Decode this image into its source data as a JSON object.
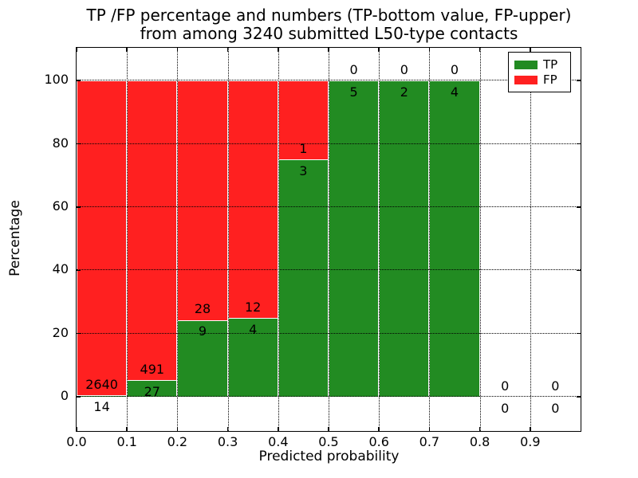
{
  "title": {
    "line1": "TP /FP percentage and numbers (TP-bottom value, FP-upper)",
    "line2": "from among 3240 submitted L50-type contacts"
  },
  "axes": {
    "xlabel": "Predicted probability",
    "ylabel": "Percentage",
    "x_tick_labels": [
      "0.0",
      "0.1",
      "0.2",
      "0.3",
      "0.4",
      "0.5",
      "0.6",
      "0.7",
      "0.8",
      "0.9"
    ],
    "y_tick_labels": [
      "0",
      "20",
      "40",
      "60",
      "80",
      "100"
    ],
    "grid_style": "dotted"
  },
  "legend": {
    "position": "upper right",
    "entries": [
      {
        "label": "TP",
        "color": "#228b22"
      },
      {
        "label": "FP",
        "color": "#ff2020"
      }
    ]
  },
  "chart_data": {
    "type": "bar",
    "stacked": true,
    "normalization": "each bin scaled to 100% (TP bottom, FP upper); labels show raw counts",
    "title": "TP /FP percentage and numbers (TP-bottom value, FP-upper) from among 3240 submitted L50-type contacts",
    "xlabel": "Predicted probability",
    "ylabel": "Percentage",
    "total_contacts": 3240,
    "bin_edges": [
      0.0,
      0.1,
      0.2,
      0.3,
      0.4,
      0.5,
      0.6,
      0.7,
      0.8,
      0.9,
      1.0
    ],
    "series": [
      {
        "name": "TP",
        "color": "#228b22",
        "counts": [
          14,
          27,
          9,
          4,
          3,
          5,
          2,
          4,
          0,
          0
        ]
      },
      {
        "name": "FP",
        "color": "#ff2020",
        "counts": [
          2640,
          491,
          28,
          12,
          1,
          0,
          0,
          0,
          0,
          0
        ]
      }
    ],
    "tp_percent_per_bin": [
      0.53,
      5.21,
      24.32,
      25.0,
      75.0,
      100.0,
      100.0,
      100.0,
      null,
      null
    ],
    "xlim": [
      0.0,
      1.0
    ],
    "ylim": [
      -10.8,
      110.1
    ],
    "x_ticks": [
      0.0,
      0.1,
      0.2,
      0.3,
      0.4,
      0.5,
      0.6,
      0.7,
      0.8,
      0.9
    ],
    "y_ticks": [
      0,
      20,
      40,
      60,
      80,
      100
    ],
    "grid": true,
    "legend_position": "upper right"
  }
}
